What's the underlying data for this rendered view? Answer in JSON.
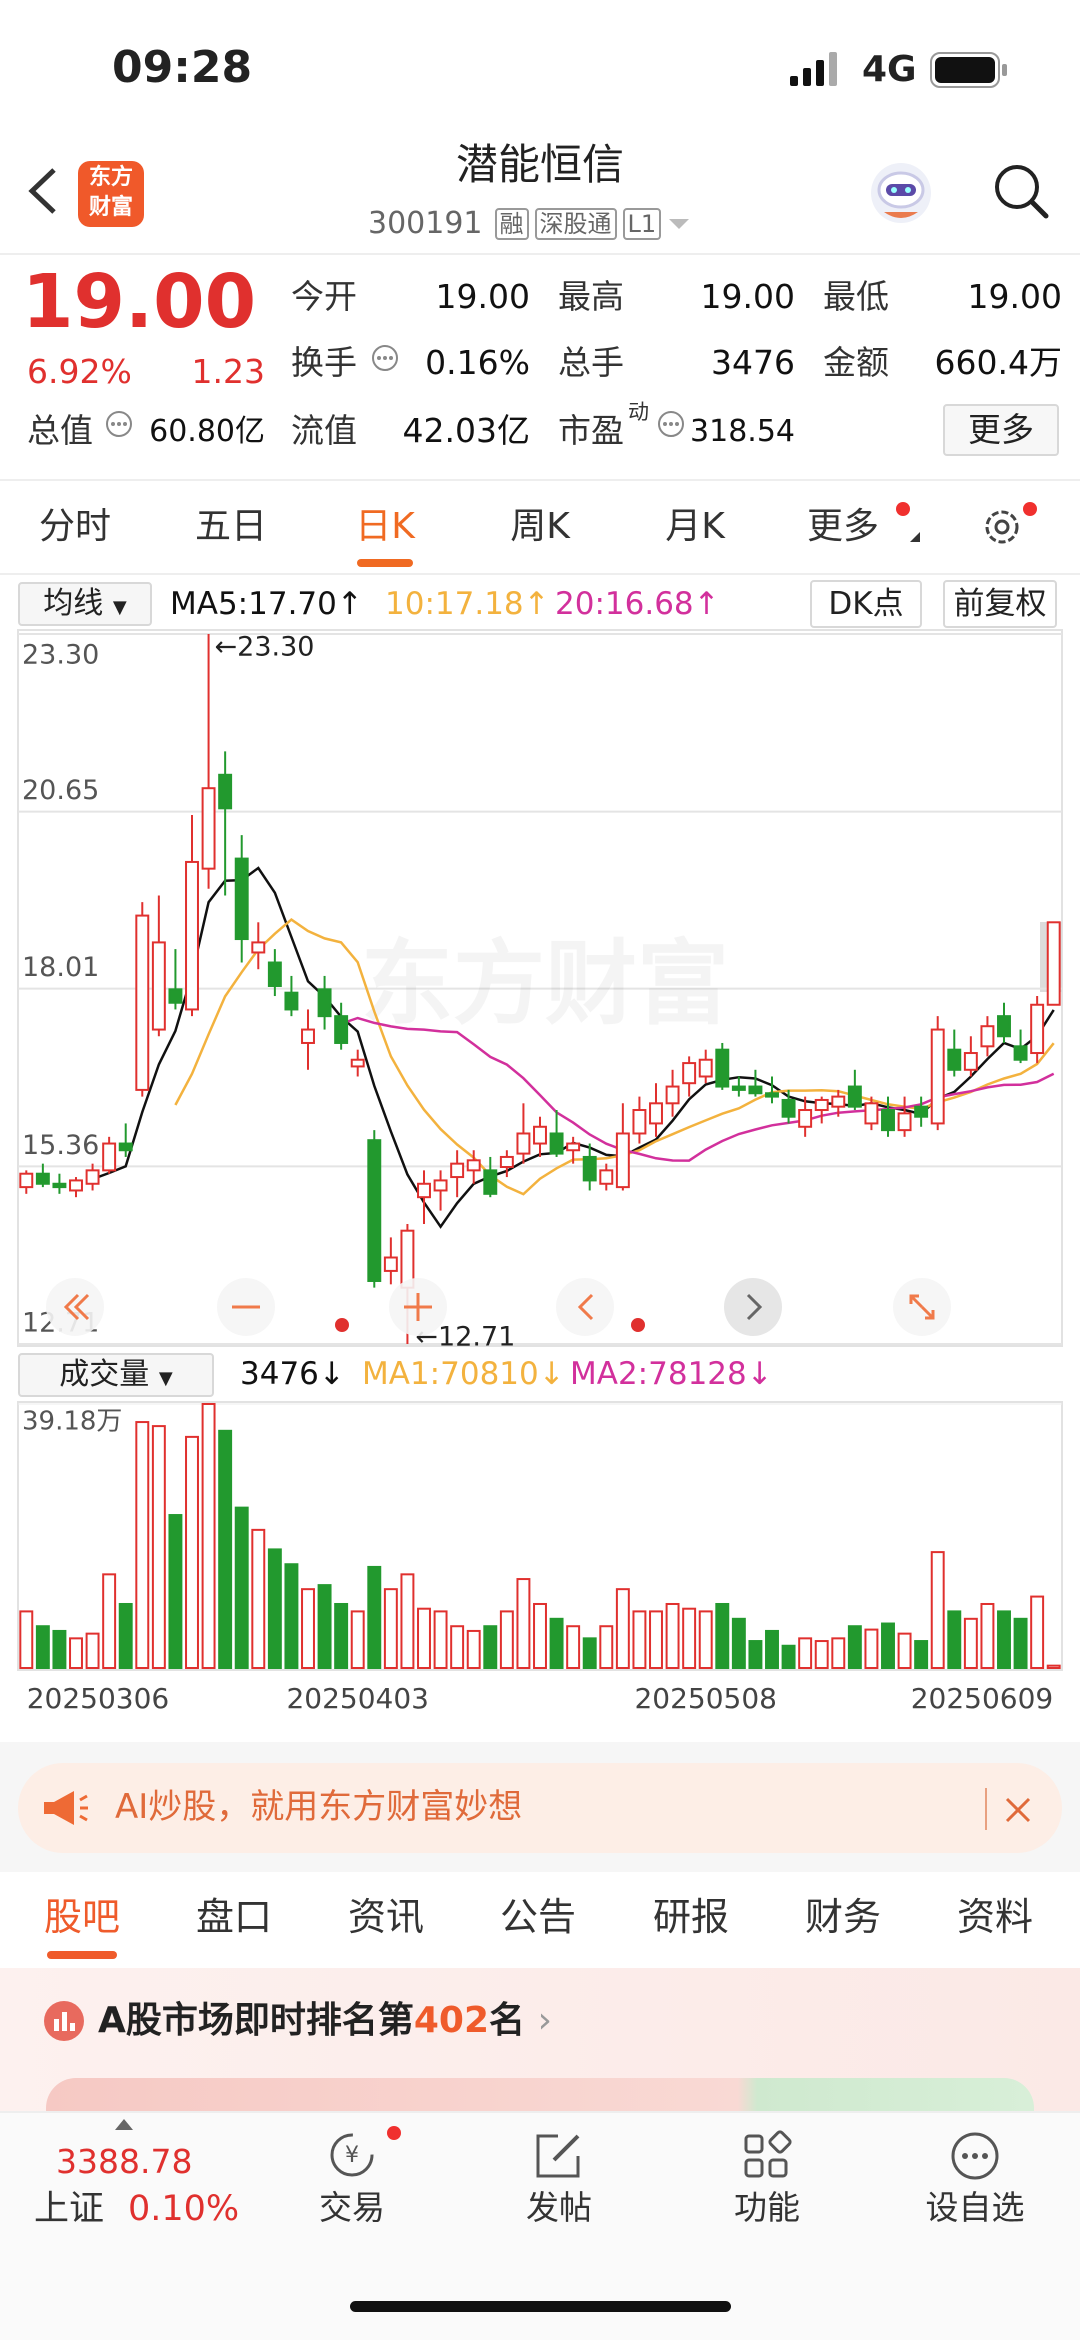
{
  "status": {
    "time": "09:28",
    "network": "4G"
  },
  "header": {
    "logo": [
      "东方",
      "财富"
    ],
    "title": "潜能恒信",
    "code": "300191",
    "badges": [
      "融",
      "深股通",
      "L1"
    ]
  },
  "quote": {
    "price": "19.00",
    "change_pct": "6.92%",
    "change": "1.23",
    "stats": [
      [
        {
          "label": "今开",
          "value": "19.00"
        },
        {
          "label": "最高",
          "value": "19.00"
        },
        {
          "label": "最低",
          "value": "19.00"
        }
      ],
      [
        {
          "label": "换手",
          "value": "0.16%"
        },
        {
          "label": "总手",
          "value": "3476"
        },
        {
          "label": "金额",
          "value": "660.4万"
        }
      ],
      [
        {
          "label": "总值",
          "value": "60.80亿"
        },
        {
          "label": "流值",
          "value": "42.03亿"
        },
        {
          "label": "市盈",
          "sup": "动",
          "value": "318.54"
        }
      ]
    ],
    "more": "更多"
  },
  "tabs": [
    "分时",
    "五日",
    "日K",
    "周K",
    "月K",
    "更多"
  ],
  "kline": {
    "type": "candlestick",
    "indicator": "均线",
    "ma": [
      {
        "label": "MA5:17.70↑",
        "period": 5,
        "color": "#111111"
      },
      {
        "label": "10:17.18↑",
        "period": 10,
        "color": "#f3b23e"
      },
      {
        "label": "20:16.68↑",
        "period": 20,
        "color": "#d2309c"
      }
    ],
    "buttons": [
      "DK点",
      "前复权"
    ],
    "watermark": "东方财富",
    "up_color": "#e0302e",
    "down_color": "#22992e",
    "ylim": [
      12.71,
      23.3
    ],
    "yticks": [
      {
        "value": 23.3,
        "label": "23.30"
      },
      20.65,
      18.01,
      15.36,
      12.71
    ],
    "high_label": "←23.30",
    "low_label": "←12.71",
    "candles": [
      [
        15.05,
        15.3,
        14.95,
        15.25
      ],
      [
        15.25,
        15.4,
        15.05,
        15.1
      ],
      [
        15.1,
        15.25,
        14.95,
        15.05
      ],
      [
        15.0,
        15.2,
        14.9,
        15.15
      ],
      [
        15.1,
        15.4,
        15.0,
        15.3
      ],
      [
        15.3,
        15.8,
        15.25,
        15.7
      ],
      [
        15.7,
        16.0,
        15.5,
        15.6
      ],
      [
        16.5,
        19.3,
        16.4,
        19.1
      ],
      [
        17.4,
        19.4,
        17.3,
        18.7
      ],
      [
        18.0,
        18.6,
        17.7,
        17.8
      ],
      [
        17.7,
        20.6,
        17.6,
        19.9
      ],
      [
        19.8,
        23.3,
        19.5,
        21.0
      ],
      [
        21.2,
        21.55,
        19.4,
        20.7
      ],
      [
        19.95,
        20.3,
        18.4,
        18.75
      ],
      [
        18.55,
        19.0,
        18.3,
        18.7
      ],
      [
        18.4,
        18.6,
        17.9,
        18.05
      ],
      [
        17.95,
        18.2,
        17.6,
        17.7
      ],
      [
        17.2,
        17.7,
        16.8,
        17.4
      ],
      [
        18.0,
        18.2,
        17.4,
        17.6
      ],
      [
        17.6,
        17.8,
        17.1,
        17.2
      ],
      [
        16.85,
        17.1,
        16.7,
        16.95
      ],
      [
        15.75,
        15.9,
        13.55,
        13.65
      ],
      [
        13.8,
        14.3,
        13.6,
        14.0
      ],
      [
        13.55,
        14.5,
        12.71,
        14.4
      ],
      [
        14.9,
        15.3,
        14.5,
        15.1
      ],
      [
        15.0,
        15.3,
        14.7,
        15.15
      ],
      [
        15.2,
        15.6,
        14.9,
        15.4
      ],
      [
        15.3,
        15.6,
        15.1,
        15.45
      ],
      [
        15.3,
        15.5,
        14.9,
        14.95
      ],
      [
        15.35,
        15.6,
        15.2,
        15.5
      ],
      [
        15.55,
        16.3,
        15.4,
        15.85
      ],
      [
        15.7,
        16.1,
        15.5,
        15.95
      ],
      [
        15.85,
        16.2,
        15.5,
        15.55
      ],
      [
        15.6,
        15.8,
        15.4,
        15.7
      ],
      [
        15.5,
        15.7,
        15.0,
        15.15
      ],
      [
        15.1,
        15.4,
        15.0,
        15.3
      ],
      [
        15.05,
        16.3,
        15.0,
        15.85
      ],
      [
        15.85,
        16.4,
        15.7,
        16.2
      ],
      [
        16.0,
        16.6,
        15.8,
        16.3
      ],
      [
        16.3,
        16.8,
        16.1,
        16.55
      ],
      [
        16.6,
        17.0,
        16.4,
        16.9
      ],
      [
        16.7,
        17.1,
        16.6,
        16.95
      ],
      [
        17.1,
        17.2,
        16.5,
        16.55
      ],
      [
        16.55,
        16.7,
        16.4,
        16.5
      ],
      [
        16.55,
        16.8,
        16.4,
        16.45
      ],
      [
        16.45,
        16.7,
        16.3,
        16.4
      ],
      [
        16.35,
        16.5,
        16.0,
        16.1
      ],
      [
        15.95,
        16.4,
        15.8,
        16.2
      ],
      [
        16.2,
        16.4,
        16.0,
        16.35
      ],
      [
        16.25,
        16.5,
        16.1,
        16.4
      ],
      [
        16.55,
        16.8,
        16.2,
        16.25
      ],
      [
        16.0,
        16.4,
        15.9,
        16.3
      ],
      [
        16.2,
        16.4,
        15.8,
        15.9
      ],
      [
        15.9,
        16.4,
        15.8,
        16.15
      ],
      [
        16.25,
        16.4,
        15.95,
        16.1
      ],
      [
        16.0,
        17.6,
        15.9,
        17.4
      ],
      [
        17.1,
        17.4,
        16.7,
        16.8
      ],
      [
        16.8,
        17.3,
        16.7,
        17.05
      ],
      [
        17.15,
        17.6,
        17.0,
        17.45
      ],
      [
        17.6,
        17.8,
        17.2,
        17.3
      ],
      [
        17.15,
        17.4,
        16.9,
        16.95
      ],
      [
        17.05,
        17.9,
        16.9,
        17.77
      ],
      [
        17.77,
        19.0,
        17.77,
        19.0
      ]
    ],
    "categories": [
      "20250306",
      null,
      null,
      null,
      null,
      null,
      null,
      null,
      null,
      null,
      null,
      null,
      null,
      null,
      null,
      null,
      null,
      null,
      null,
      null,
      "20250403",
      null,
      null,
      null,
      null,
      null,
      null,
      null,
      null,
      null,
      null,
      null,
      null,
      null,
      null,
      null,
      null,
      null,
      null,
      null,
      null,
      "20250508",
      null,
      null,
      null,
      null,
      null,
      null,
      null,
      null,
      null,
      null,
      null,
      null,
      null,
      null,
      null,
      null,
      "20250609",
      null,
      null,
      null,
      null
    ]
  },
  "volume": {
    "indicator": "成交量",
    "legend": [
      {
        "text": "3476↓",
        "color": "#111111"
      },
      {
        "text": "MA1:70810↓",
        "color": "#f3b23e"
      },
      {
        "text": "MA2:78128↓",
        "color": "#d2309c"
      }
    ],
    "ylim": [
      0,
      39.18
    ],
    "yticks": [
      {
        "value": 39.18,
        "label": "39.18万"
      }
    ],
    "values": [
      8.4,
      6.2,
      5.5,
      4.4,
      5.1,
      13.9,
      9.5,
      36.5,
      35.9,
      22.7,
      34.3,
      39.18,
      35.2,
      23.8,
      20.5,
      17.6,
      15.4,
      11.7,
      12.3,
      9.5,
      8.4,
      15.0,
      11.7,
      13.9,
      8.8,
      8.4,
      6.2,
      5.5,
      6.2,
      8.4,
      13.2,
      9.5,
      7.3,
      6.2,
      4.4,
      6.2,
      11.7,
      8.4,
      8.4,
      9.5,
      8.8,
      8.4,
      9.5,
      7.3,
      4.0,
      5.5,
      3.3,
      4.4,
      4.0,
      4.4,
      6.2,
      5.7,
      6.6,
      5.1,
      4.0,
      17.2,
      8.4,
      7.3,
      9.5,
      8.4,
      7.3,
      10.6,
      0.3476
    ]
  },
  "banner": "AI炒股，就用东方财富妙想",
  "subtabs": [
    "股吧",
    "盘口",
    "资讯",
    "公告",
    "研报",
    "财务",
    "资料"
  ],
  "ranking": {
    "prefix": "A股市场即时排名第",
    "rank": "402",
    "suffix": "名"
  },
  "bottom": {
    "index_value": "3388.78",
    "index_name": "上证",
    "index_change": "0.10%",
    "items": [
      "交易",
      "发帖",
      "功能",
      "设自选"
    ]
  }
}
